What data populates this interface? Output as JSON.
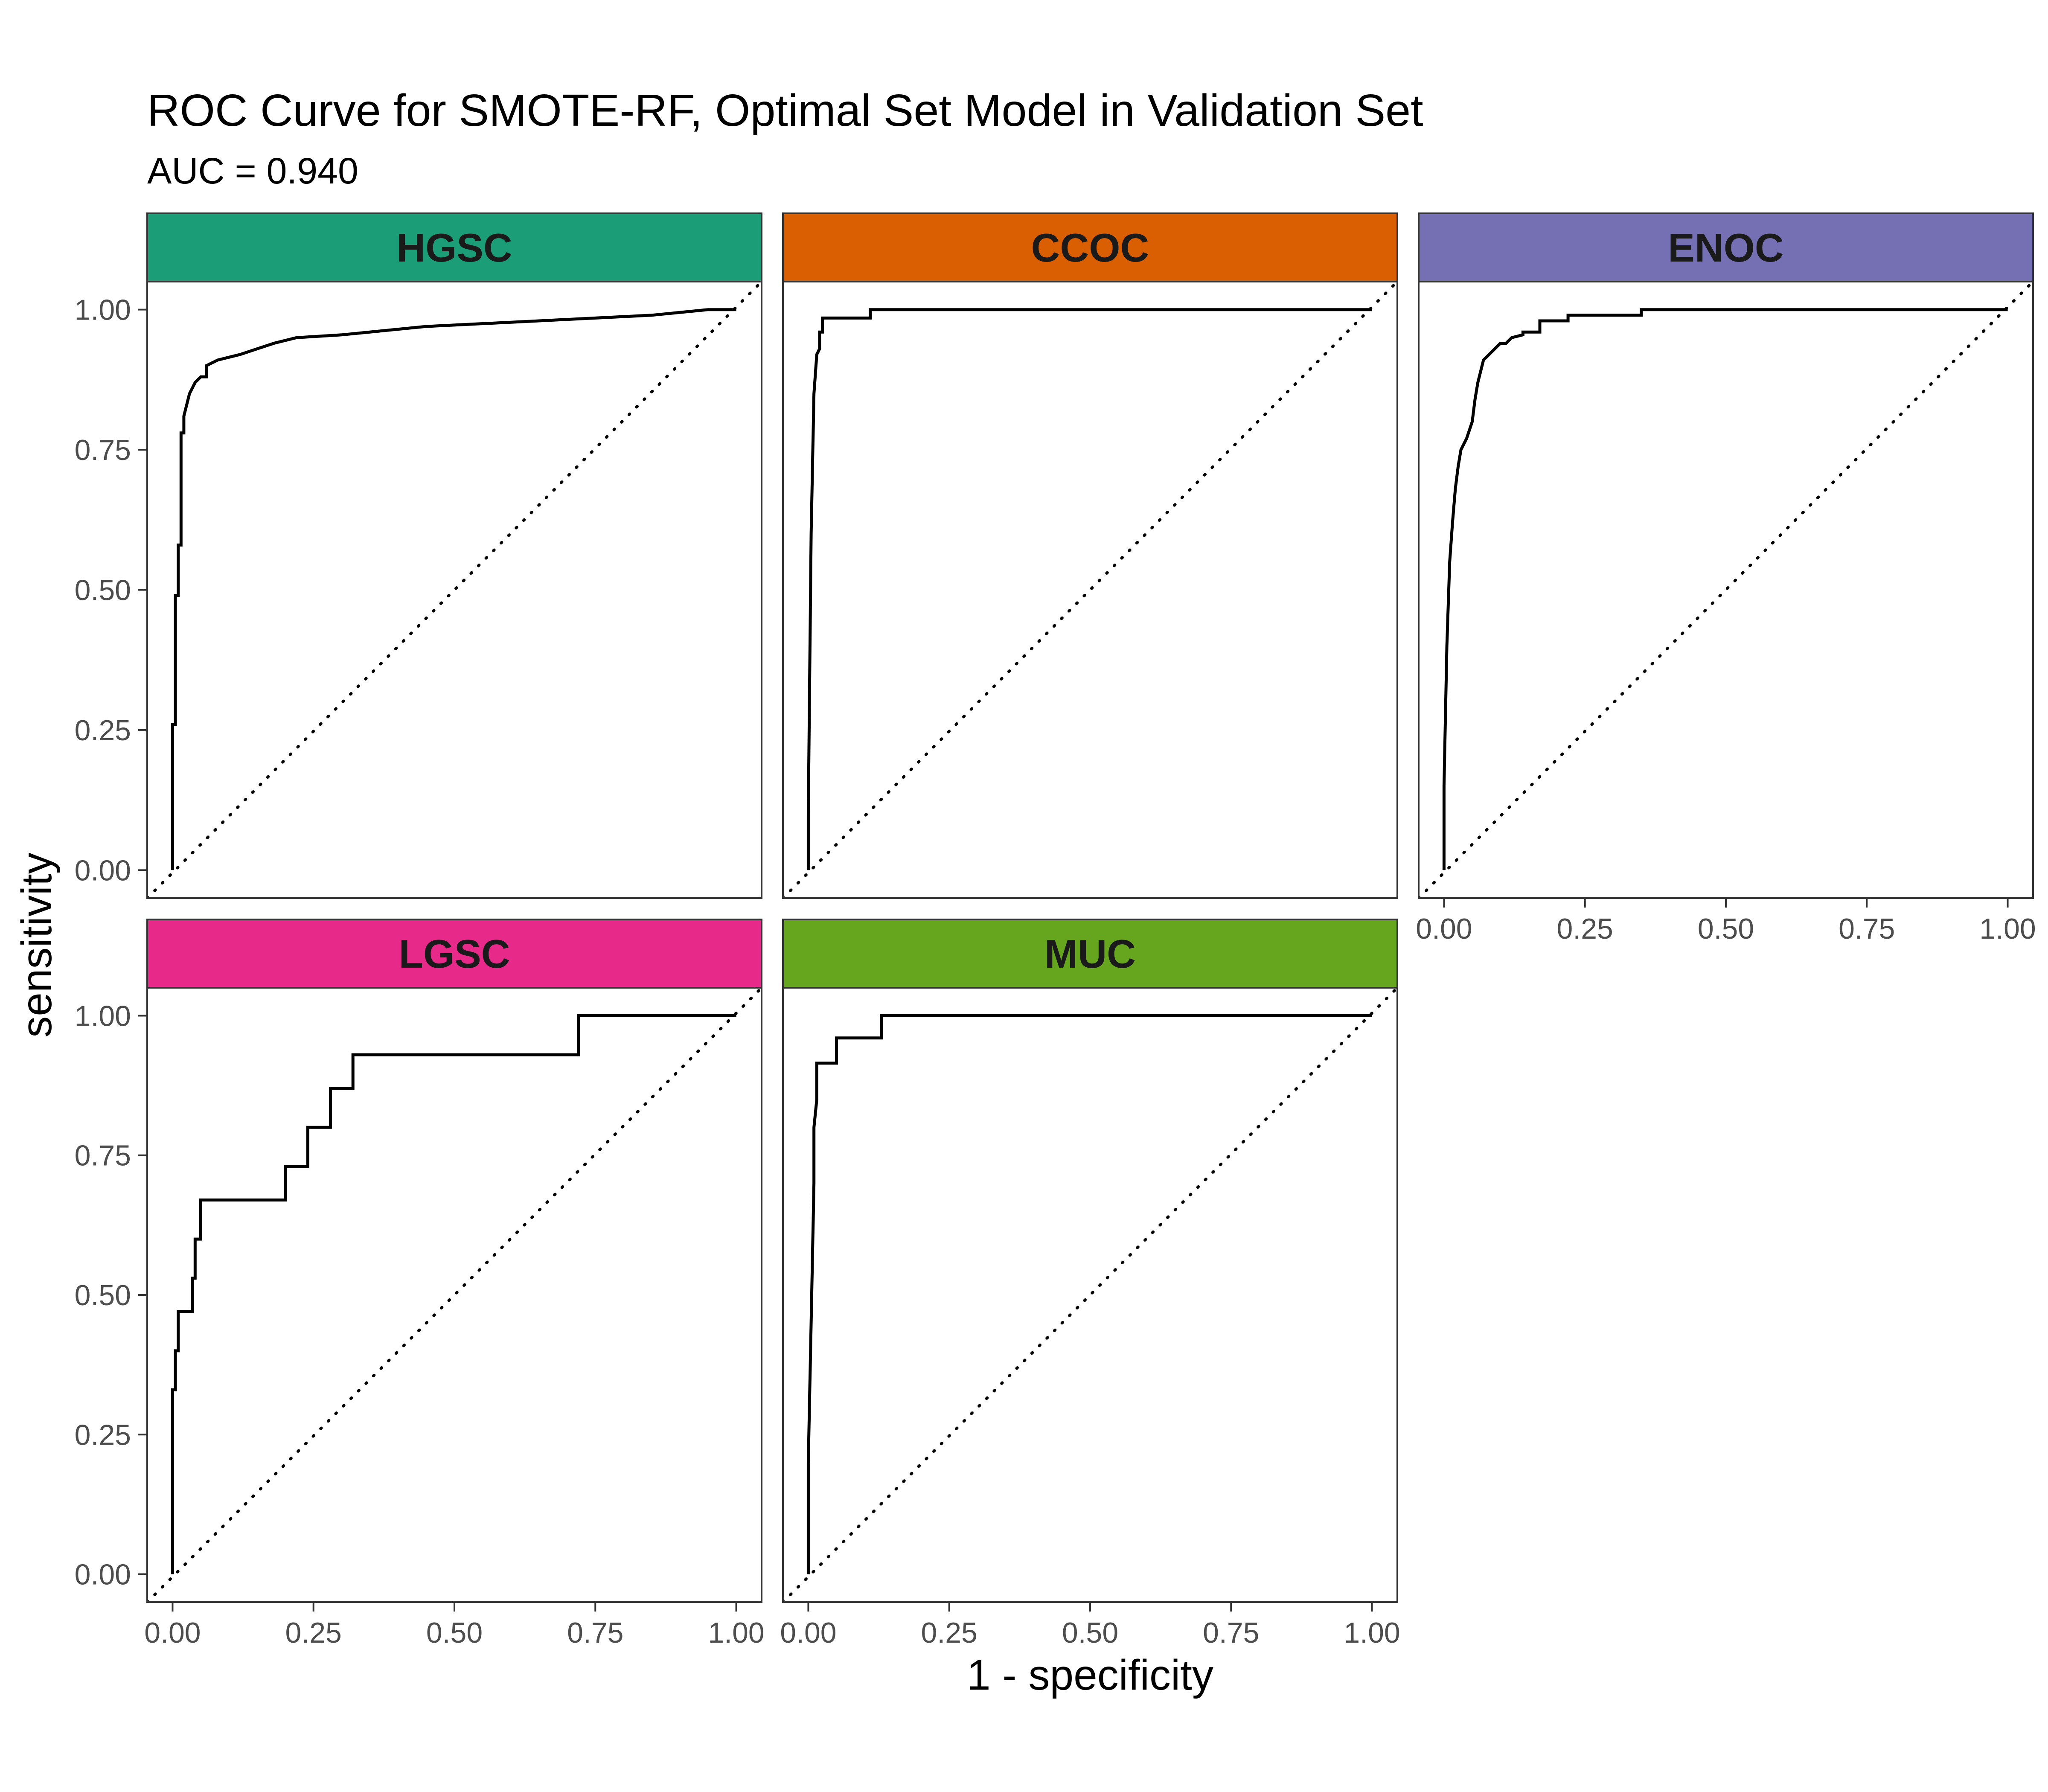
{
  "chart_data": {
    "type": "line",
    "title": "ROC Curve for SMOTE-RF, Optimal Set Model in Validation Set",
    "subtitle": "AUC = 0.940",
    "xlabel": "1 - specificity",
    "ylabel": "sensitivity",
    "xlim": [
      0,
      1
    ],
    "ylim": [
      0,
      1
    ],
    "ticks": [
      "0.00",
      "0.25",
      "0.50",
      "0.75",
      "1.00"
    ],
    "grid": false,
    "reference_line": "diagonal y = x (dotted)",
    "facets": [
      {
        "name": "HGSC",
        "strip_color": "#1b9e77",
        "x": [
          0,
          0,
          0.005,
          0.005,
          0.01,
          0.01,
          0.015,
          0.015,
          0.02,
          0.02,
          0.025,
          0.03,
          0.035,
          0.04,
          0.05,
          0.06,
          0.06,
          0.08,
          0.1,
          0.12,
          0.15,
          0.18,
          0.22,
          0.3,
          0.45,
          0.65,
          0.85,
          0.95,
          1.0
        ],
        "y": [
          0,
          0.26,
          0.26,
          0.49,
          0.49,
          0.58,
          0.58,
          0.78,
          0.78,
          0.81,
          0.83,
          0.85,
          0.86,
          0.87,
          0.88,
          0.88,
          0.9,
          0.91,
          0.915,
          0.92,
          0.93,
          0.94,
          0.95,
          0.955,
          0.97,
          0.98,
          0.99,
          1.0,
          1.0
        ]
      },
      {
        "name": "CCOC",
        "strip_color": "#d95f02",
        "x": [
          0,
          0,
          0.005,
          0.01,
          0.015,
          0.02,
          0.02,
          0.025,
          0.025,
          0.11,
          0.11,
          1.0
        ],
        "y": [
          0,
          0.1,
          0.6,
          0.85,
          0.92,
          0.93,
          0.96,
          0.96,
          0.985,
          0.985,
          1.0,
          1.0
        ]
      },
      {
        "name": "ENOC",
        "strip_color": "#7570b3",
        "x": [
          0,
          0,
          0.005,
          0.01,
          0.015,
          0.02,
          0.025,
          0.03,
          0.04,
          0.05,
          0.055,
          0.06,
          0.065,
          0.07,
          0.08,
          0.09,
          0.1,
          0.11,
          0.12,
          0.14,
          0.14,
          0.17,
          0.17,
          0.22,
          0.22,
          0.35,
          0.35,
          1.0
        ],
        "y": [
          0,
          0.15,
          0.4,
          0.55,
          0.62,
          0.68,
          0.72,
          0.75,
          0.77,
          0.8,
          0.84,
          0.87,
          0.89,
          0.91,
          0.92,
          0.93,
          0.94,
          0.94,
          0.95,
          0.955,
          0.96,
          0.96,
          0.98,
          0.98,
          0.99,
          0.99,
          1.0,
          1.0
        ]
      },
      {
        "name": "LGSC",
        "strip_color": "#e7298a",
        "x": [
          0,
          0,
          0.005,
          0.005,
          0.01,
          0.01,
          0.035,
          0.035,
          0.04,
          0.04,
          0.05,
          0.05,
          0.2,
          0.2,
          0.24,
          0.24,
          0.28,
          0.28,
          0.32,
          0.32,
          0.72,
          0.72,
          1.0
        ],
        "y": [
          0,
          0.33,
          0.33,
          0.4,
          0.4,
          0.47,
          0.47,
          0.53,
          0.53,
          0.6,
          0.6,
          0.67,
          0.67,
          0.73,
          0.73,
          0.8,
          0.8,
          0.87,
          0.87,
          0.93,
          0.93,
          1.0,
          1.0
        ]
      },
      {
        "name": "MUC",
        "strip_color": "#66a61e",
        "x": [
          0,
          0,
          0.005,
          0.01,
          0.01,
          0.015,
          0.015,
          0.05,
          0.05,
          0.13,
          0.13,
          1.0
        ],
        "y": [
          0,
          0.2,
          0.45,
          0.7,
          0.8,
          0.85,
          0.915,
          0.915,
          0.96,
          0.96,
          1.0,
          1.0
        ]
      }
    ]
  }
}
